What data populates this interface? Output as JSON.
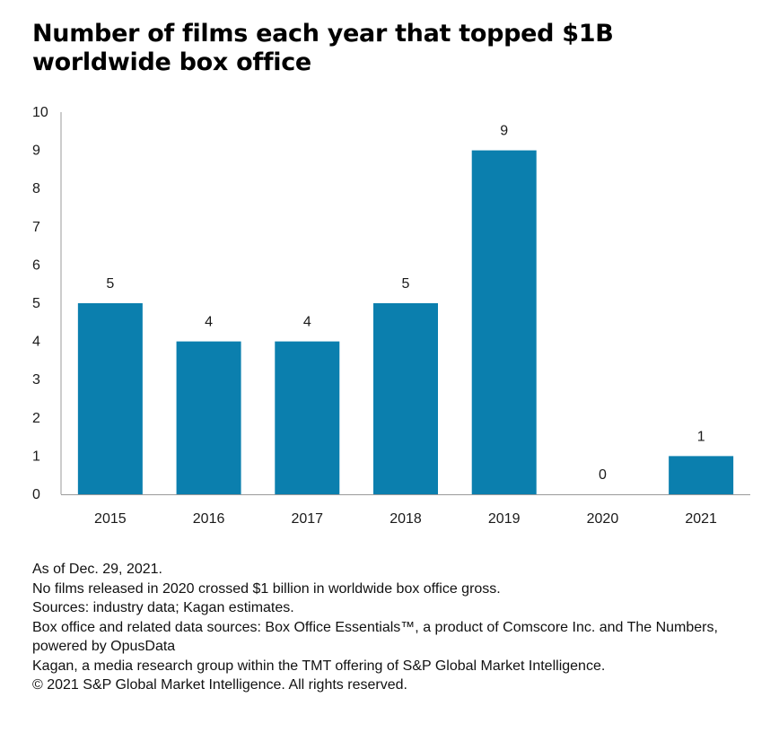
{
  "chart_data": {
    "type": "bar",
    "title": "Number of films each year that topped $1B worldwide box office",
    "categories": [
      "2015",
      "2016",
      "2017",
      "2018",
      "2019",
      "2020",
      "2021"
    ],
    "values": [
      5,
      4,
      4,
      5,
      9,
      0,
      1
    ],
    "ylim": [
      0,
      10
    ],
    "yticks": [
      0,
      1,
      2,
      3,
      4,
      5,
      6,
      7,
      8,
      9,
      10
    ],
    "xlabel": "",
    "ylabel": "",
    "grid": false,
    "bar_color": "#0b7fae",
    "data_labels": true
  },
  "notes": [
    "As of Dec. 29, 2021.",
    "No films released in 2020 crossed $1 billion in worldwide box office gross.",
    "Sources: industry data; Kagan estimates.",
    "Box office and related data sources: Box Office Essentials™, a product of Comscore Inc. and The Numbers, powered by OpusData",
    "Kagan, a media research group within the TMT offering of S&P Global Market Intelligence.",
    "© 2021 S&P Global Market Intelligence. All rights reserved."
  ]
}
